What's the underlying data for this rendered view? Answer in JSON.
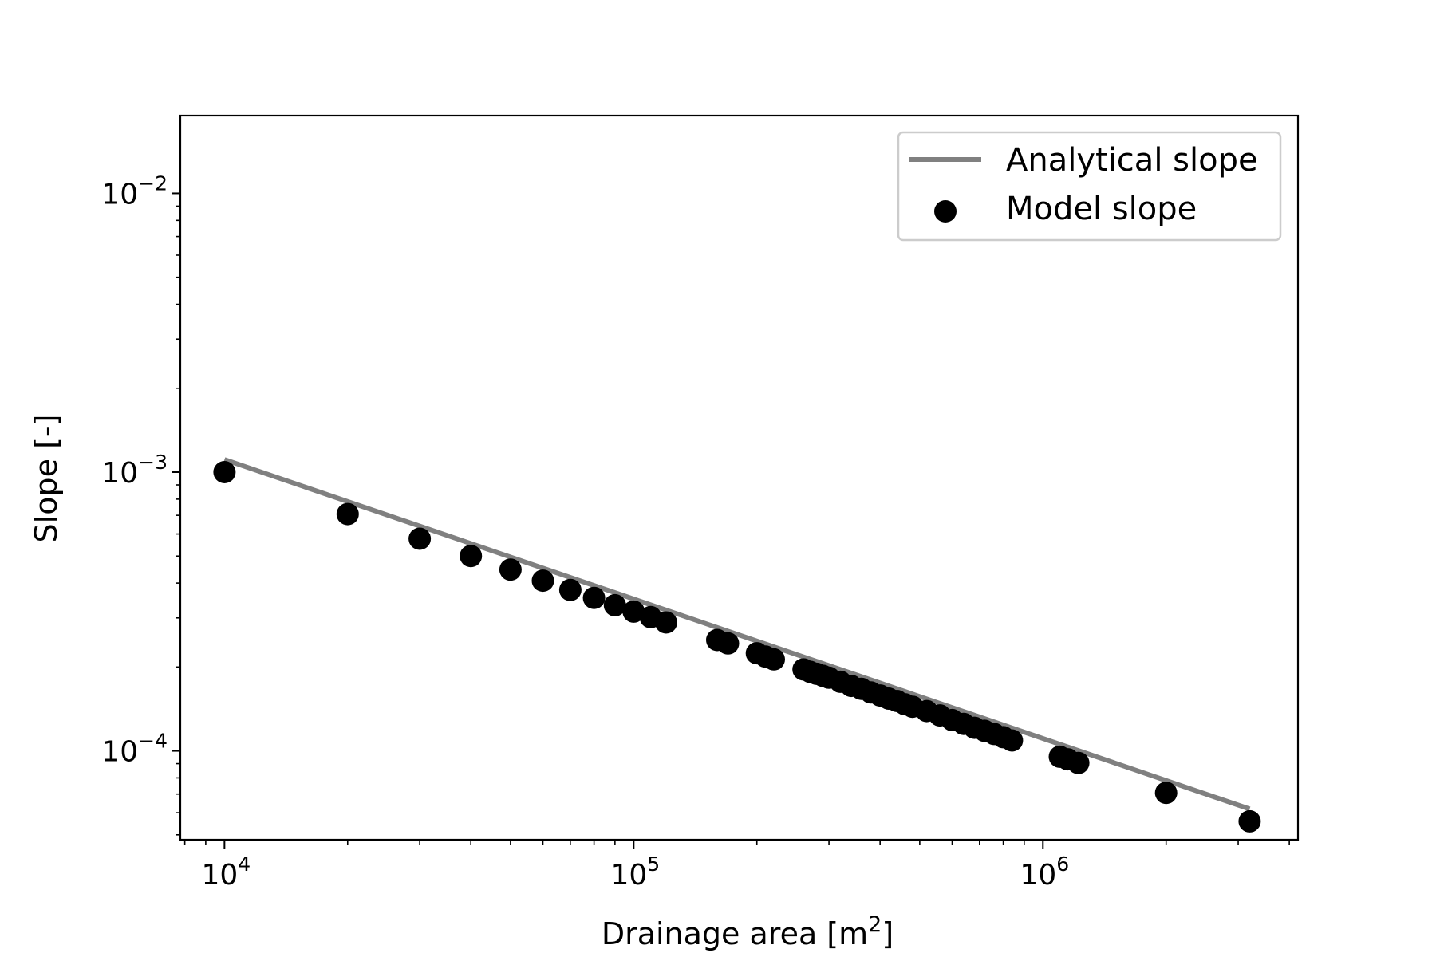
{
  "chart_data": {
    "type": "scatter",
    "title": "",
    "xlabel": "Drainage area [m",
    "xlabel_sup": "2",
    "xlabel_end": "]",
    "ylabel": "Slope [-]",
    "xscale": "log",
    "yscale": "log",
    "xlim": [
      7800,
      4200000
    ],
    "ylim": [
      4.8e-05,
      0.019
    ],
    "x_ticks": [
      {
        "value": 10000,
        "base": "10",
        "exp": "4"
      },
      {
        "value": 100000,
        "base": "10",
        "exp": "5"
      },
      {
        "value": 1000000,
        "base": "10",
        "exp": "6"
      }
    ],
    "y_ticks": [
      {
        "value": 0.0001,
        "base": "10",
        "exp": "−4"
      },
      {
        "value": 0.001,
        "base": "10",
        "exp": "−3"
      },
      {
        "value": 0.01,
        "base": "10",
        "exp": "−2"
      }
    ],
    "grid": false,
    "legend_position": "top-right",
    "series": [
      {
        "name": "Analytical slope",
        "kind": "line",
        "color": "#808080",
        "x": [
          10000,
          3200000
        ],
        "y": [
          0.00111,
          6.19e-05
        ]
      },
      {
        "name": "Model slope",
        "kind": "scatter",
        "color": "#000000",
        "x": [
          10000,
          20000,
          30000,
          40000,
          50000,
          60000,
          70000,
          80000,
          90000,
          100000,
          110000,
          120000,
          160000,
          170000,
          200000,
          210000,
          220000,
          260000,
          270000,
          280000,
          290000,
          300000,
          320000,
          340000,
          360000,
          380000,
          400000,
          420000,
          440000,
          460000,
          480000,
          520000,
          560000,
          600000,
          640000,
          680000,
          720000,
          760000,
          800000,
          840000,
          1100000,
          1150000,
          1220000,
          2000000,
          3200000
        ],
        "y": [
          0.001,
          0.000707,
          0.000577,
          0.0005,
          0.000447,
          0.000408,
          0.000378,
          0.000354,
          0.000333,
          0.000316,
          0.000302,
          0.000289,
          0.00025,
          0.000243,
          0.000224,
          0.000218,
          0.000213,
          0.000196,
          0.000192,
          0.000189,
          0.000186,
          0.000183,
          0.000177,
          0.000171,
          0.000167,
          0.000162,
          0.000158,
          0.000154,
          0.000151,
          0.000147,
          0.000144,
          0.000139,
          0.000134,
          0.000129,
          0.000125,
          0.000121,
          0.000118,
          0.000115,
          0.000112,
          0.000109,
          9.53e-05,
          9.33e-05,
          9.05e-05,
          7.07e-05,
          5.59e-05
        ]
      }
    ]
  }
}
